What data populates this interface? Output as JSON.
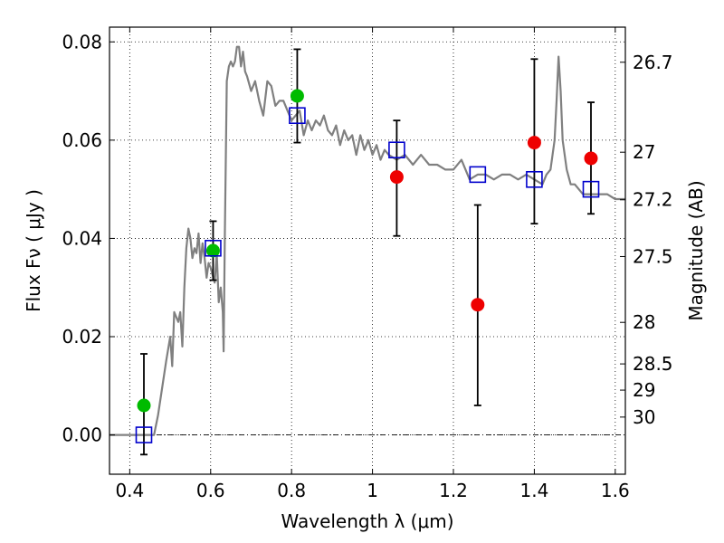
{
  "chart_data": {
    "type": "scatter",
    "xlabel": "Wavelength  λ (μm)",
    "ylabel": "Flux  Fν  ( μJy )",
    "ylabel_right": "Magnitude (AB)",
    "xlim": [
      0.35,
      1.625
    ],
    "ylim": [
      -0.008,
      0.083
    ],
    "grid": true,
    "x_ticks": [
      {
        "value": 0.4,
        "label": "0.4"
      },
      {
        "value": 0.6,
        "label": "0.6"
      },
      {
        "value": 0.8,
        "label": "0.8"
      },
      {
        "value": 1.0,
        "label": "1"
      },
      {
        "value": 1.2,
        "label": "1.2"
      },
      {
        "value": 1.4,
        "label": "1.4"
      },
      {
        "value": 1.6,
        "label": "1.6"
      }
    ],
    "y_ticks": [
      {
        "value": 0.0,
        "label": "0.00"
      },
      {
        "value": 0.02,
        "label": "0.02"
      },
      {
        "value": 0.04,
        "label": "0.04"
      },
      {
        "value": 0.06,
        "label": "0.06"
      },
      {
        "value": 0.08,
        "label": "0.08"
      }
    ],
    "mag_ticks": [
      {
        "mag": 26.7,
        "label": "26.7"
      },
      {
        "mag": 27,
        "label": "27"
      },
      {
        "mag": 27.2,
        "label": "27.2"
      },
      {
        "mag": 27.5,
        "label": "27.5"
      },
      {
        "mag": 28,
        "label": "28"
      },
      {
        "mag": 28.5,
        "label": "28.5"
      },
      {
        "mag": 29,
        "label": "29"
      },
      {
        "mag": 30,
        "label": "30"
      }
    ],
    "series": [
      {
        "kind": "model-spectrum",
        "color": "#808080",
        "x": [
          0.35,
          0.46,
          0.47,
          0.49,
          0.5,
          0.505,
          0.51,
          0.52,
          0.525,
          0.53,
          0.535,
          0.54,
          0.545,
          0.55,
          0.555,
          0.56,
          0.565,
          0.57,
          0.575,
          0.58,
          0.585,
          0.59,
          0.595,
          0.6,
          0.61,
          0.615,
          0.62,
          0.625,
          0.63,
          0.632,
          0.635,
          0.64,
          0.645,
          0.65,
          0.655,
          0.66,
          0.665,
          0.67,
          0.675,
          0.68,
          0.685,
          0.69,
          0.7,
          0.71,
          0.72,
          0.73,
          0.74,
          0.75,
          0.76,
          0.77,
          0.78,
          0.79,
          0.8,
          0.81,
          0.82,
          0.83,
          0.84,
          0.85,
          0.86,
          0.87,
          0.88,
          0.89,
          0.9,
          0.91,
          0.92,
          0.93,
          0.94,
          0.95,
          0.96,
          0.97,
          0.98,
          0.99,
          1.0,
          1.01,
          1.02,
          1.03,
          1.04,
          1.06,
          1.08,
          1.1,
          1.12,
          1.14,
          1.16,
          1.18,
          1.2,
          1.22,
          1.24,
          1.26,
          1.28,
          1.3,
          1.32,
          1.34,
          1.36,
          1.38,
          1.4,
          1.42,
          1.43,
          1.44,
          1.45,
          1.455,
          1.46,
          1.465,
          1.47,
          1.48,
          1.49,
          1.5,
          1.52,
          1.54,
          1.56,
          1.58,
          1.6,
          1.625
        ],
        "y": [
          0.0,
          0.0,
          0.004,
          0.015,
          0.02,
          0.014,
          0.025,
          0.023,
          0.025,
          0.018,
          0.03,
          0.038,
          0.042,
          0.04,
          0.036,
          0.038,
          0.037,
          0.041,
          0.035,
          0.039,
          0.036,
          0.032,
          0.035,
          0.034,
          0.031,
          0.037,
          0.027,
          0.03,
          0.025,
          0.017,
          0.04,
          0.072,
          0.075,
          0.076,
          0.075,
          0.076,
          0.079,
          0.079,
          0.075,
          0.078,
          0.074,
          0.073,
          0.07,
          0.072,
          0.068,
          0.065,
          0.072,
          0.071,
          0.067,
          0.068,
          0.068,
          0.066,
          0.064,
          0.065,
          0.066,
          0.061,
          0.064,
          0.062,
          0.064,
          0.063,
          0.065,
          0.062,
          0.061,
          0.063,
          0.059,
          0.062,
          0.06,
          0.061,
          0.057,
          0.061,
          0.058,
          0.06,
          0.057,
          0.059,
          0.056,
          0.058,
          0.057,
          0.056,
          0.057,
          0.055,
          0.057,
          0.055,
          0.055,
          0.054,
          0.054,
          0.056,
          0.052,
          0.053,
          0.053,
          0.052,
          0.053,
          0.053,
          0.052,
          0.053,
          0.052,
          0.051,
          0.053,
          0.054,
          0.06,
          0.068,
          0.077,
          0.07,
          0.06,
          0.054,
          0.051,
          0.051,
          0.049,
          0.049,
          0.049,
          0.049,
          0.048,
          0.048
        ]
      },
      {
        "kind": "model-photometry",
        "color": "#0000cc",
        "marker": "open-square",
        "x": [
          0.435,
          0.606,
          0.814,
          1.06,
          1.26,
          1.4,
          1.54
        ],
        "y": [
          0.0,
          0.038,
          0.065,
          0.058,
          0.053,
          0.052,
          0.05
        ]
      },
      {
        "kind": "observed-optical",
        "color": "#00bb00",
        "marker": "filled-circle",
        "x": [
          0.435,
          0.606,
          0.814
        ],
        "y": [
          0.006,
          0.0375,
          0.069
        ],
        "err_low": [
          -0.004,
          0.0315,
          0.0595
        ],
        "err_high": [
          0.0165,
          0.0435,
          0.0785
        ]
      },
      {
        "kind": "observed-ir",
        "color": "#ee0000",
        "marker": "filled-circle",
        "x": [
          1.06,
          1.26,
          1.4,
          1.54
        ],
        "y": [
          0.0525,
          0.0265,
          0.0595,
          0.0563
        ],
        "err_low": [
          0.0405,
          0.006,
          0.043,
          0.045
        ],
        "err_high": [
          0.064,
          0.0468,
          0.0765,
          0.0677
        ]
      }
    ]
  }
}
